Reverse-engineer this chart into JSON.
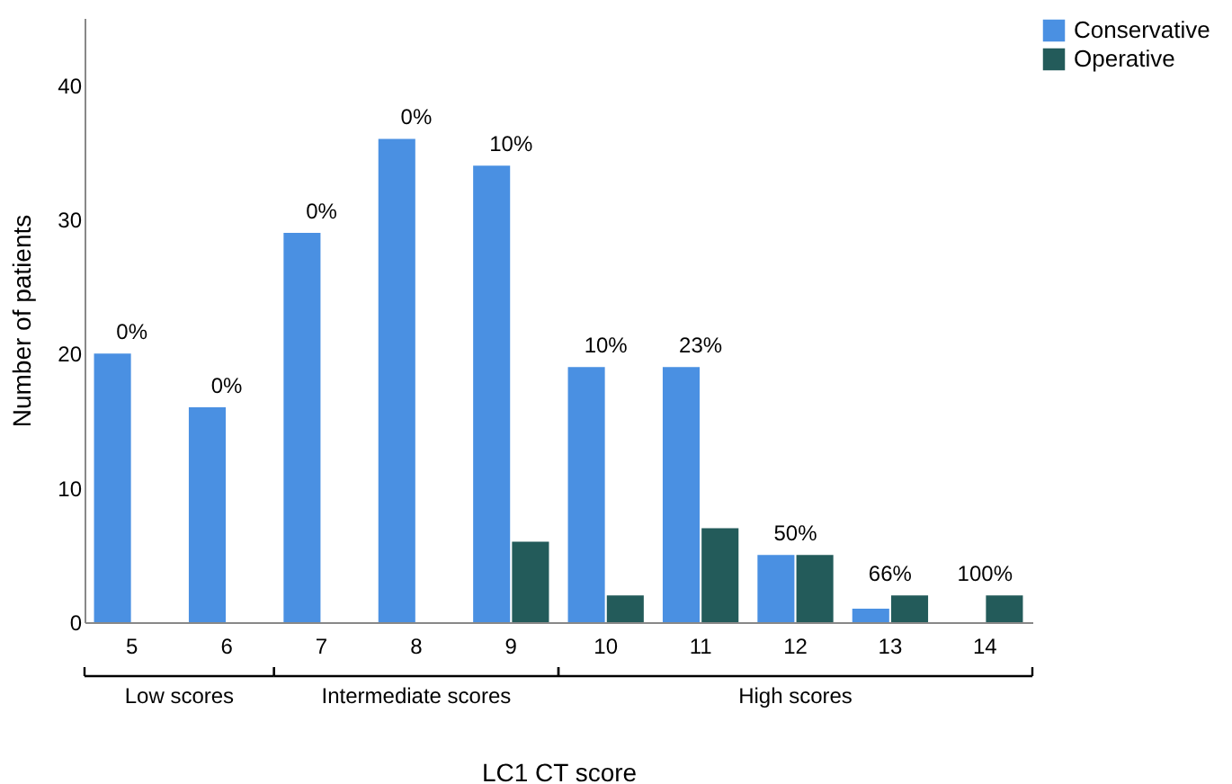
{
  "chart_data": {
    "type": "bar",
    "xlabel": "LC1 CT score",
    "ylabel": "Number of patients",
    "categories": [
      "5",
      "6",
      "7",
      "8",
      "9",
      "10",
      "11",
      "12",
      "13",
      "14"
    ],
    "series": [
      {
        "name": "Conservative",
        "color": "#4a90e2",
        "values": [
          20,
          16,
          29,
          36,
          34,
          19,
          19,
          5,
          1,
          null
        ]
      },
      {
        "name": "Operative",
        "color": "#235b5a",
        "values": [
          null,
          null,
          null,
          null,
          6,
          2,
          7,
          5,
          2,
          2
        ]
      }
    ],
    "ylim": [
      0,
      45
    ],
    "yticks": [
      0,
      10,
      20,
      30,
      40
    ],
    "grid": false,
    "legend": "top right",
    "annotations": [
      {
        "text": "0%",
        "x": "5",
        "y": 20
      },
      {
        "text": "0%",
        "x": "6",
        "y": 16
      },
      {
        "text": "0%",
        "x": "7",
        "y": 29
      },
      {
        "text": "0%",
        "x": "8",
        "y": 36
      },
      {
        "text": "10%",
        "x": "9",
        "y": 34
      },
      {
        "text": "10%",
        "x": "10",
        "y": 19
      },
      {
        "text": "23%",
        "x": "11",
        "y": 19
      },
      {
        "text": "50%",
        "x": "12",
        "y": 5
      },
      {
        "text": "66%",
        "x": "13",
        "y": 2
      },
      {
        "text": "100%",
        "x": "14",
        "y": 2
      },
      "Low scores",
      "Intermediate scores",
      "High scores"
    ]
  }
}
